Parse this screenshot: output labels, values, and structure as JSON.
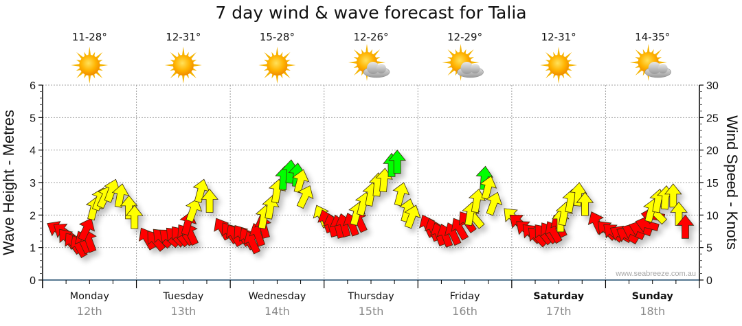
{
  "chart_data": {
    "type": "wind-wave-forecast",
    "title": "7 day wind & wave forecast for Talia",
    "ylabel_left": "Wave Height - Metres",
    "ylabel_right": "Wind Speed - Knots",
    "ylim_left": [
      0,
      6
    ],
    "ylim_right": [
      0,
      30
    ],
    "yticks_left": [
      "0",
      "1",
      "2",
      "3",
      "4",
      "5",
      "6"
    ],
    "yticks_right": [
      "0",
      "5",
      "10",
      "15",
      "20",
      "25",
      "30"
    ],
    "grid": true,
    "watermark": "www.seabreeze.com.au",
    "days": [
      {
        "day": "Monday",
        "date": "12th",
        "temp": "11-28°",
        "icon": "sunny-icon",
        "bold": false
      },
      {
        "day": "Tuesday",
        "date": "13th",
        "temp": "12-31°",
        "icon": "sunny-icon",
        "bold": false
      },
      {
        "day": "Wednesday",
        "date": "14th",
        "temp": "15-28°",
        "icon": "sunny-icon",
        "bold": false
      },
      {
        "day": "Thursday",
        "date": "15th",
        "temp": "12-26°",
        "icon": "partly-cloudy-icon",
        "bold": false
      },
      {
        "day": "Friday",
        "date": "16th",
        "temp": "12-29°",
        "icon": "partly-cloudy-icon",
        "bold": false
      },
      {
        "day": "Saturday",
        "date": "17th",
        "temp": "12-31°",
        "icon": "sunny-icon",
        "bold": true
      },
      {
        "day": "Sunday",
        "date": "18th",
        "temp": "14-35°",
        "icon": "partly-cloudy-icon",
        "bold": true
      }
    ],
    "wind_color_scale": {
      "light": "#ff0000",
      "moderate": "#ffff00",
      "strong": "#00ff00"
    },
    "wind_series": {
      "x_unit": "day index (0 = Monday 00:00)",
      "points": [
        [
          0.05,
          8.7,
          -60
        ],
        [
          0.12,
          8.5,
          -55
        ],
        [
          0.18,
          7.8,
          -40
        ],
        [
          0.25,
          7.2,
          -35
        ],
        [
          0.32,
          6.8,
          -30
        ],
        [
          0.38,
          7.5,
          -25
        ],
        [
          0.45,
          7.8,
          -20
        ],
        [
          0.52,
          9.5,
          25
        ],
        [
          0.58,
          12.8,
          15
        ],
        [
          0.65,
          14.2,
          20
        ],
        [
          0.72,
          14.5,
          25
        ],
        [
          0.78,
          15.5,
          20
        ],
        [
          0.85,
          14.8,
          10
        ],
        [
          0.92,
          13.0,
          0
        ],
        [
          0.98,
          11.5,
          0
        ],
        [
          1.05,
          8.0,
          -30
        ],
        [
          1.12,
          7.5,
          -40
        ],
        [
          1.18,
          7.8,
          -45
        ],
        [
          1.25,
          7.7,
          -50
        ],
        [
          1.32,
          8.0,
          -45
        ],
        [
          1.38,
          8.2,
          -40
        ],
        [
          1.45,
          8.5,
          -35
        ],
        [
          1.52,
          8.8,
          -25
        ],
        [
          1.58,
          10.5,
          15
        ],
        [
          1.65,
          12.5,
          20
        ],
        [
          1.72,
          15.5,
          15
        ],
        [
          1.78,
          14.0,
          0
        ],
        [
          1.85,
          9.5,
          -30
        ],
        [
          1.92,
          8.8,
          -35
        ],
        [
          1.98,
          8.5,
          -30
        ],
        [
          2.05,
          8.4,
          -35
        ],
        [
          2.12,
          8.0,
          -30
        ],
        [
          2.18,
          7.5,
          -25
        ],
        [
          2.25,
          8.7,
          -20
        ],
        [
          2.32,
          10.0,
          -15
        ],
        [
          2.38,
          11.5,
          10
        ],
        [
          2.45,
          13.0,
          10
        ],
        [
          2.52,
          15.5,
          10
        ],
        [
          2.58,
          17.5,
          5
        ],
        [
          2.65,
          18.5,
          5
        ],
        [
          2.72,
          18.0,
          5
        ],
        [
          2.78,
          17.0,
          15
        ],
        [
          2.85,
          14.5,
          25
        ],
        [
          2.92,
          11.5,
          -25
        ],
        [
          2.98,
          10.8,
          -20
        ],
        [
          3.05,
          10.2,
          -15
        ],
        [
          3.12,
          10.0,
          -15
        ],
        [
          3.18,
          10.2,
          -15
        ],
        [
          3.25,
          10.3,
          -20
        ],
        [
          3.32,
          10.8,
          -25
        ],
        [
          3.38,
          12.0,
          15
        ],
        [
          3.45,
          13.5,
          15
        ],
        [
          3.52,
          15.0,
          10
        ],
        [
          3.58,
          16.5,
          5
        ],
        [
          3.65,
          17.2,
          5
        ],
        [
          3.72,
          19.5,
          0
        ],
        [
          3.78,
          20.0,
          0
        ],
        [
          3.85,
          15.0,
          15
        ],
        [
          3.92,
          12.5,
          15
        ],
        [
          3.98,
          11.5,
          20
        ],
        [
          4.05,
          10.0,
          -25
        ],
        [
          4.12,
          9.5,
          -20
        ],
        [
          4.18,
          8.8,
          -20
        ],
        [
          4.25,
          8.6,
          -20
        ],
        [
          4.32,
          8.8,
          -25
        ],
        [
          4.38,
          9.5,
          -30
        ],
        [
          4.45,
          10.5,
          -35
        ],
        [
          4.52,
          11.0,
          -40
        ],
        [
          4.58,
          12.0,
          10
        ],
        [
          4.65,
          14.0,
          10
        ],
        [
          4.72,
          17.5,
          5
        ],
        [
          4.78,
          16.0,
          15
        ],
        [
          4.85,
          13.5,
          20
        ],
        [
          4.92,
          11.0,
          -45
        ],
        [
          4.98,
          10.0,
          -50
        ],
        [
          5.05,
          9.0,
          -50
        ],
        [
          5.12,
          8.5,
          -45
        ],
        [
          5.18,
          8.0,
          -45
        ],
        [
          5.25,
          8.5,
          -40
        ],
        [
          5.32,
          8.8,
          -35
        ],
        [
          5.38,
          9.0,
          -30
        ],
        [
          5.45,
          10.0,
          -25
        ],
        [
          5.52,
          11.0,
          0
        ],
        [
          5.58,
          12.0,
          10
        ],
        [
          5.65,
          14.0,
          10
        ],
        [
          5.72,
          15.0,
          5
        ],
        [
          5.78,
          13.5,
          0
        ],
        [
          5.85,
          10.5,
          -25
        ],
        [
          5.92,
          9.0,
          -45
        ],
        [
          5.98,
          8.5,
          -50
        ],
        [
          6.05,
          8.0,
          -60
        ],
        [
          6.12,
          7.8,
          -60
        ],
        [
          6.18,
          8.2,
          -65
        ],
        [
          6.25,
          8.5,
          -70
        ],
        [
          6.32,
          9.0,
          -75
        ],
        [
          6.38,
          10.2,
          -80
        ],
        [
          6.45,
          11.5,
          -45
        ],
        [
          6.52,
          12.5,
          15
        ],
        [
          6.58,
          14.0,
          10
        ],
        [
          6.65,
          14.5,
          5
        ],
        [
          6.72,
          14.8,
          0
        ],
        [
          6.78,
          12.0,
          0
        ],
        [
          6.85,
          10.0,
          0
        ]
      ]
    }
  }
}
